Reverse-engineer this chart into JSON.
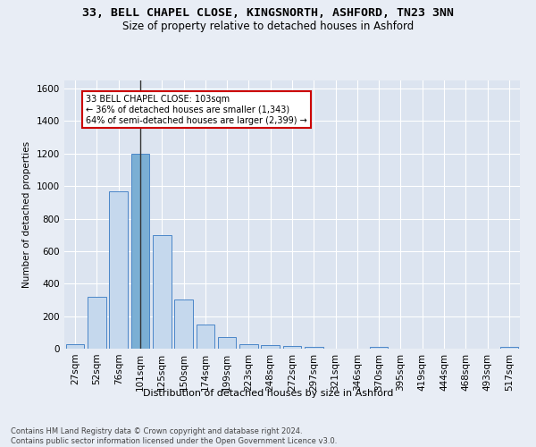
{
  "title": "33, BELL CHAPEL CLOSE, KINGSNORTH, ASHFORD, TN23 3NN",
  "subtitle": "Size of property relative to detached houses in Ashford",
  "xlabel": "Distribution of detached houses by size in Ashford",
  "ylabel": "Number of detached properties",
  "bar_labels": [
    "27sqm",
    "52sqm",
    "76sqm",
    "101sqm",
    "125sqm",
    "150sqm",
    "174sqm",
    "199sqm",
    "223sqm",
    "248sqm",
    "272sqm",
    "297sqm",
    "321sqm",
    "346sqm",
    "370sqm",
    "395sqm",
    "419sqm",
    "444sqm",
    "468sqm",
    "493sqm",
    "517sqm"
  ],
  "bar_values": [
    30,
    320,
    970,
    1200,
    700,
    300,
    150,
    70,
    30,
    20,
    15,
    10,
    0,
    0,
    12,
    0,
    0,
    0,
    0,
    0,
    12
  ],
  "highlight_index": 3,
  "highlight_color": "#7bafd4",
  "bar_color": "#c5d8ed",
  "bar_edge_color": "#4a86c8",
  "ylim": [
    0,
    1650
  ],
  "yticks": [
    0,
    200,
    400,
    600,
    800,
    1000,
    1200,
    1400,
    1600
  ],
  "annotation_text": "33 BELL CHAPEL CLOSE: 103sqm\n← 36% of detached houses are smaller (1,343)\n64% of semi-detached houses are larger (2,399) →",
  "annotation_box_color": "#ffffff",
  "annotation_border_color": "#cc0000",
  "footer": "Contains HM Land Registry data © Crown copyright and database right 2024.\nContains public sector information licensed under the Open Government Licence v3.0.",
  "bg_color": "#e8edf5",
  "plot_bg_color": "#dce4f0",
  "grid_color": "#ffffff",
  "title_fontsize": 9.5,
  "subtitle_fontsize": 8.5
}
